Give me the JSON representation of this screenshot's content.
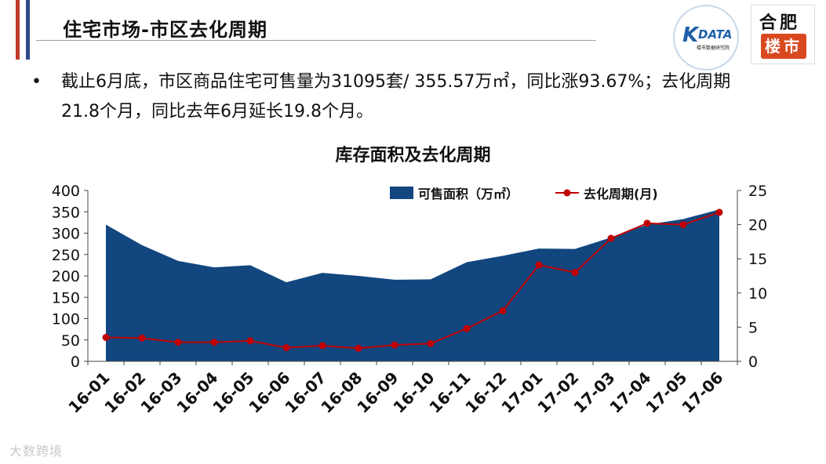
{
  "header": {
    "title": "住宅市场-市区去化周期"
  },
  "logos": {
    "kdata_mark": "K",
    "kdata_name": "DATA",
    "kdata_sub": "楼市数据研究院",
    "hefei_top": "合肥",
    "hefei_bottom": "楼市"
  },
  "body": {
    "bullet": "•",
    "paragraph": "截止6月底，市区商品住宅可售量为31095套/ 355.57万㎡，同比涨93.67%；去化周期21.8个月，同比去年6月延长19.8个月。"
  },
  "watermark": "大数跨境",
  "colors": {
    "area": "#12467f",
    "line": "#c00000",
    "stripe_red": "#c0392b",
    "stripe_blue": "#2c4a8c",
    "logo_red": "#d9481f",
    "kdata_blue": "#1f5fa8"
  },
  "chart_data": {
    "type": "area",
    "title": "库存面积及去化周期",
    "categories": [
      "16-01",
      "16-02",
      "16-03",
      "16-04",
      "16-05",
      "16-06",
      "16-07",
      "16-08",
      "16-09",
      "16-10",
      "16-11",
      "16-12",
      "17-01",
      "17-02",
      "17-03",
      "17-04",
      "17-05",
      "17-06"
    ],
    "y_left": {
      "ylim": [
        0,
        400
      ],
      "ticks": [
        0,
        50,
        100,
        150,
        200,
        250,
        300,
        350,
        400
      ]
    },
    "y_right": {
      "ylim": [
        0,
        25
      ],
      "ticks": [
        0,
        5,
        10,
        15,
        20,
        25
      ]
    },
    "series": [
      {
        "name": "可售面积（万㎡）",
        "type": "area",
        "axis": "left",
        "values": [
          320,
          272,
          235,
          220,
          225,
          185,
          207,
          200,
          191,
          192,
          232,
          247,
          264,
          263,
          290,
          320,
          333,
          355.57
        ]
      },
      {
        "name": "去化周期(月)",
        "type": "line",
        "axis": "right",
        "values": [
          3.5,
          3.4,
          2.8,
          2.8,
          3.0,
          2.0,
          2.3,
          1.9,
          2.4,
          2.6,
          4.8,
          7.4,
          14.1,
          13.0,
          18.0,
          20.2,
          20.0,
          21.8
        ]
      }
    ],
    "legend": "top"
  }
}
